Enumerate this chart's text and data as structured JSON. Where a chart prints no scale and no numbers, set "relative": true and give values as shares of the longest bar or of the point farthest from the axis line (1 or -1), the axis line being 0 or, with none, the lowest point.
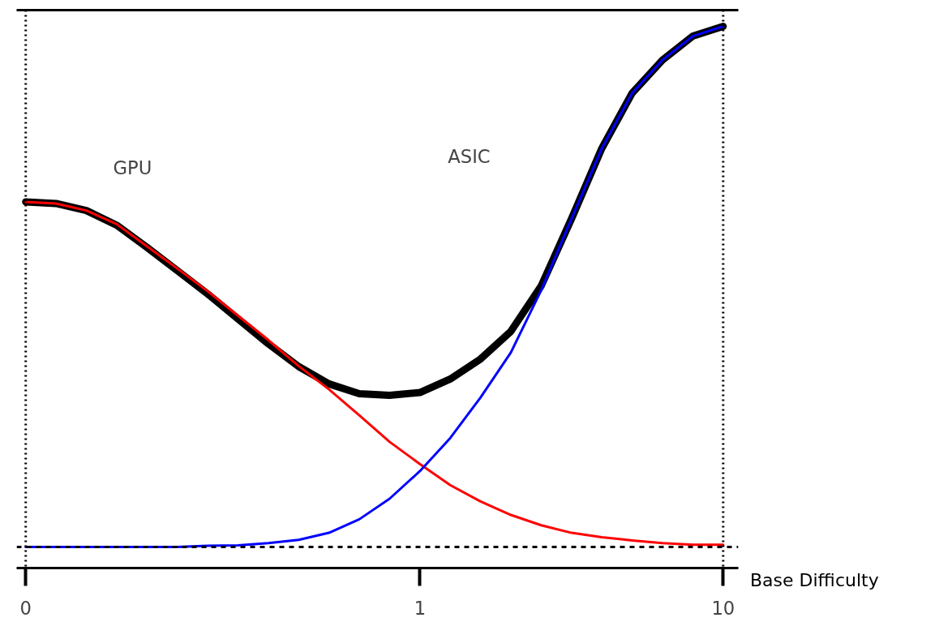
{
  "chart_data": {
    "type": "line",
    "relative": true,
    "xlabel": "Base Difficulty",
    "categories": [
      "0",
      null,
      null,
      null,
      null,
      null,
      null,
      null,
      null,
      null,
      null,
      null,
      null,
      "1",
      null,
      null,
      null,
      null,
      null,
      null,
      null,
      null,
      null,
      "10"
    ],
    "series": [
      {
        "color": "#ff0000",
        "values": [
          0.676,
          0.673,
          0.66,
          0.635,
          0.594,
          0.553,
          0.511,
          0.466,
          0.421,
          0.373,
          0.33,
          0.282,
          0.233,
          0.192,
          0.153,
          0.123,
          0.098,
          0.079,
          0.065,
          0.057,
          0.051,
          0.046,
          0.043,
          0.043
        ]
      },
      {
        "color": "#0000ff",
        "values": [
          0.039,
          0.039,
          0.039,
          0.039,
          0.039,
          0.039,
          0.041,
          0.042,
          0.046,
          0.052,
          0.065,
          0.09,
          0.128,
          0.179,
          0.24,
          0.315,
          0.398,
          0.513,
          0.645,
          0.775,
          0.877,
          0.938,
          0.982,
          1.0
        ]
      },
      {
        "color": "#000000",
        "values": [
          0.676,
          0.673,
          0.66,
          0.633,
          0.592,
          0.549,
          0.506,
          0.46,
          0.414,
          0.372,
          0.34,
          0.322,
          0.319,
          0.324,
          0.349,
          0.386,
          0.437,
          0.521,
          0.645,
          0.775,
          0.877,
          0.938,
          0.982,
          1.0
        ]
      }
    ],
    "annotations": [
      "GPU",
      "ASIC"
    ],
    "ref_lines": [
      {
        "axis": "x",
        "value": "0",
        "line_style": "dotted",
        "color": "#000000"
      },
      {
        "axis": "x",
        "value": "10",
        "line_style": "dotted",
        "color": "#000000"
      },
      {
        "axis": "y",
        "value": 0.039,
        "line_style": "dashed",
        "color": "#000000"
      }
    ],
    "grid": false
  }
}
